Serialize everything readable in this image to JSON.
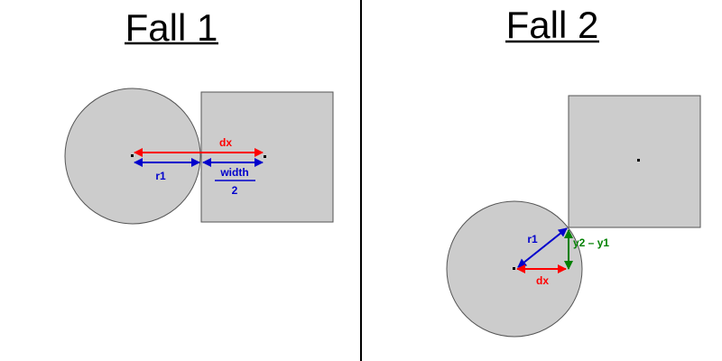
{
  "panels": [
    {
      "title": "Fall 1",
      "labels": {
        "dx": "dx",
        "r1": "r1",
        "width": "width",
        "two": "2"
      }
    },
    {
      "title": "Fall 2",
      "labels": {
        "r1": "r1",
        "y2_y1": "y2 – y1",
        "dx": "dx"
      }
    }
  ],
  "colors": {
    "shape_fill": "#cccccc",
    "shape_stroke": "#555555",
    "divider": "#000000",
    "red": "#ff0000",
    "blue": "#0000cc",
    "green": "#008000"
  }
}
